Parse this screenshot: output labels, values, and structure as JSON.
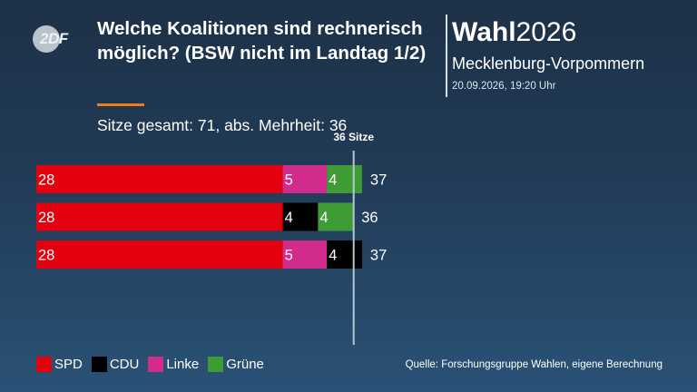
{
  "header": {
    "logo_text": "2DF",
    "title": "Welche Koalitionen sind rechnerisch möglich? (BSW nicht im Landtag 1/2)",
    "subtitle": "Sitze gesamt: 71, abs. Mehrheit: 36"
  },
  "brand": {
    "wahl": "Wahl",
    "year": "2026",
    "region": "Mecklenburg-Vorpommern",
    "timestamp": "20.09.2026, 19:20 Uhr"
  },
  "colors": {
    "SPD": "#e3000f",
    "CDU": "#000000",
    "Linke": "#d12b8b",
    "Grüne": "#3e9c35",
    "accent": "#f07b19"
  },
  "chart_data": {
    "type": "bar",
    "orientation": "horizontal",
    "stacked": true,
    "threshold": {
      "value": 36,
      "label": "36 Sitze"
    },
    "rows": [
      {
        "segments": [
          {
            "party": "SPD",
            "value": 28
          },
          {
            "party": "Linke",
            "value": 5
          },
          {
            "party": "Grüne",
            "value": 4
          }
        ],
        "total": 37
      },
      {
        "segments": [
          {
            "party": "SPD",
            "value": 28
          },
          {
            "party": "CDU",
            "value": 4
          },
          {
            "party": "Grüne",
            "value": 4
          }
        ],
        "total": 36
      },
      {
        "segments": [
          {
            "party": "SPD",
            "value": 28
          },
          {
            "party": "Linke",
            "value": 5
          },
          {
            "party": "CDU",
            "value": 4
          }
        ],
        "total": 37
      }
    ],
    "legend": [
      "SPD",
      "CDU",
      "Linke",
      "Grüne"
    ]
  },
  "legend": [
    {
      "label": "SPD",
      "color": "#e3000f"
    },
    {
      "label": "CDU",
      "color": "#000000"
    },
    {
      "label": "Linke",
      "color": "#d12b8b"
    },
    {
      "label": "Grüne",
      "color": "#3e9c35"
    }
  ],
  "footer": {
    "source": "Quelle: Forschungsgruppe Wahlen, eigene Berechnung"
  }
}
